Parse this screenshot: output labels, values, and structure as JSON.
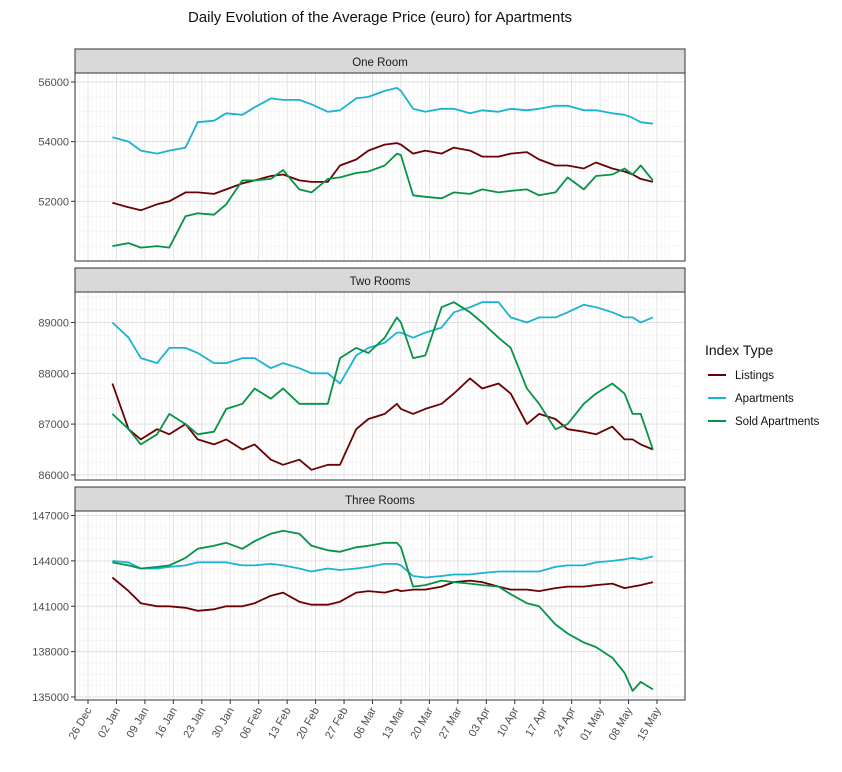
{
  "chart_data": {
    "type": "line",
    "title": "Daily Evolution of the Average Price (euro) for Apartments",
    "xlabel": "",
    "ylabel": "",
    "x_ticks": [
      "26 Dec",
      "02 Jan",
      "09 Jan",
      "16 Jan",
      "23 Jan",
      "30 Jan",
      "06 Feb",
      "13 Feb",
      "20 Feb",
      "27 Feb",
      "06 Mar",
      "13 Mar",
      "20 Mar",
      "27 Mar",
      "03 Apr",
      "10 Apr",
      "17 Apr",
      "24 Apr",
      "01 May",
      "08 May",
      "15 May"
    ],
    "x": [
      "01 Jan",
      "05 Jan",
      "08 Jan",
      "12 Jan",
      "15 Jan",
      "19 Jan",
      "22 Jan",
      "26 Jan",
      "29 Jan",
      "02 Feb",
      "05 Feb",
      "09 Feb",
      "12 Feb",
      "16 Feb",
      "19 Feb",
      "23 Feb",
      "26 Feb",
      "02 Mar",
      "05 Mar",
      "09 Mar",
      "12 Mar",
      "13 Mar",
      "16 Mar",
      "19 Mar",
      "23 Mar",
      "26 Mar",
      "30 Mar",
      "02 Apr",
      "06 Apr",
      "09 Apr",
      "13 Apr",
      "16 Apr",
      "20 Apr",
      "23 Apr",
      "27 Apr",
      "30 Apr",
      "04 May",
      "07 May",
      "09 May",
      "11 May",
      "14 May"
    ],
    "legend": {
      "title": "Index Type",
      "position": "right",
      "entries": [
        {
          "label": "Listings",
          "color": "#6b0000"
        },
        {
          "label": "Apartments",
          "color": "#1ab3d1"
        },
        {
          "label": "Sold Apartments",
          "color": "#079347"
        }
      ]
    },
    "grid": true,
    "panels": [
      {
        "label": "One Room",
        "ylim": [
          50000,
          56300
        ],
        "y_ticks": [
          52000,
          54000,
          56000
        ],
        "series": [
          {
            "name": "Listings",
            "values": [
              51950,
              51800,
              51700,
              51900,
              52000,
              52300,
              52300,
              52250,
              52400,
              52600,
              52700,
              52850,
              52900,
              52700,
              52650,
              52650,
              53200,
              53400,
              53700,
              53900,
              53950,
              53900,
              53600,
              53700,
              53600,
              53800,
              53700,
              53500,
              53500,
              53600,
              53650,
              53400,
              53200,
              53200,
              53100,
              53300,
              53100,
              53000,
              52900,
              52750,
              52650
            ]
          },
          {
            "name": "Apartments",
            "values": [
              54150,
              54000,
              53700,
              53600,
              53700,
              53800,
              54650,
              54700,
              54950,
              54900,
              55150,
              55450,
              55400,
              55400,
              55250,
              55000,
              55050,
              55450,
              55500,
              55700,
              55800,
              55700,
              55100,
              55000,
              55100,
              55100,
              54950,
              55050,
              55000,
              55100,
              55050,
              55100,
              55200,
              55200,
              55050,
              55050,
              54950,
              54900,
              54800,
              54650,
              54600
            ]
          },
          {
            "name": "Sold Apartments",
            "values": [
              50500,
              50600,
              50450,
              50500,
              50450,
              51500,
              51600,
              51550,
              51900,
              52700,
              52700,
              52750,
              53050,
              52400,
              52300,
              52750,
              52800,
              52950,
              53000,
              53200,
              53600,
              53550,
              52200,
              52150,
              52100,
              52300,
              52250,
              52400,
              52300,
              52350,
              52400,
              52200,
              52300,
              52800,
              52400,
              52850,
              52900,
              53100,
              52900,
              53200,
              52700
            ]
          }
        ]
      },
      {
        "label": "Two Rooms",
        "ylim": [
          85900,
          89600
        ],
        "y_ticks": [
          86000,
          87000,
          88000,
          89000
        ],
        "series": [
          {
            "name": "Listings",
            "values": [
              87800,
              86900,
              86700,
              86900,
              86800,
              87000,
              86700,
              86600,
              86700,
              86500,
              86600,
              86300,
              86200,
              86300,
              86100,
              86200,
              86200,
              86900,
              87100,
              87200,
              87400,
              87300,
              87200,
              87300,
              87400,
              87600,
              87900,
              87700,
              87800,
              87600,
              87000,
              87200,
              87100,
              86900,
              86850,
              86800,
              86950,
              86700,
              86700,
              86600,
              86500
            ]
          },
          {
            "name": "Apartments",
            "values": [
              89000,
              88700,
              88300,
              88200,
              88500,
              88500,
              88400,
              88200,
              88200,
              88300,
              88300,
              88100,
              88200,
              88100,
              88000,
              88000,
              87800,
              88350,
              88500,
              88600,
              88800,
              88800,
              88700,
              88800,
              88900,
              89200,
              89300,
              89400,
              89400,
              89100,
              89000,
              89100,
              89100,
              89200,
              89350,
              89300,
              89200,
              89100,
              89100,
              89000,
              89100
            ]
          },
          {
            "name": "Sold Apartments",
            "values": [
              87200,
              86900,
              86600,
              86800,
              87200,
              87000,
              86800,
              86850,
              87300,
              87400,
              87700,
              87500,
              87700,
              87400,
              87400,
              87400,
              88300,
              88500,
              88400,
              88700,
              89100,
              89000,
              88300,
              88350,
              89300,
              89400,
              89200,
              89000,
              88700,
              88500,
              87700,
              87400,
              86900,
              87000,
              87400,
              87600,
              87800,
              87600,
              87200,
              87200,
              86500
            ]
          }
        ]
      },
      {
        "label": "Three Rooms",
        "ylim": [
          134800,
          147300
        ],
        "y_ticks": [
          135000,
          138000,
          141000,
          144000,
          147000
        ],
        "series": [
          {
            "name": "Listings",
            "values": [
              142900,
              142000,
              141200,
              141000,
              141000,
              140900,
              140700,
              140800,
              141000,
              141000,
              141200,
              141700,
              141900,
              141300,
              141100,
              141100,
              141300,
              141900,
              142000,
              141900,
              142100,
              142000,
              142100,
              142100,
              142300,
              142600,
              142700,
              142600,
              142300,
              142100,
              142100,
              142000,
              142200,
              142300,
              142300,
              142400,
              142500,
              142200,
              142300,
              142400,
              142600
            ]
          },
          {
            "name": "Apartments",
            "values": [
              144000,
              143900,
              143500,
              143500,
              143600,
              143700,
              143900,
              143900,
              143900,
              143700,
              143700,
              143800,
              143700,
              143500,
              143300,
              143500,
              143400,
              143500,
              143600,
              143800,
              143800,
              143700,
              143000,
              142900,
              143000,
              143100,
              143100,
              143200,
              143300,
              143300,
              143300,
              143300,
              143600,
              143700,
              143700,
              143900,
              144000,
              144100,
              144200,
              144100,
              144300
            ]
          },
          {
            "name": "Sold Apartments",
            "values": [
              143900,
              143700,
              143500,
              143600,
              143700,
              144200,
              144800,
              145000,
              145200,
              144800,
              145300,
              145800,
              146000,
              145800,
              145000,
              144700,
              144600,
              144900,
              145000,
              145200,
              145200,
              144900,
              142300,
              142400,
              142700,
              142600,
              142500,
              142400,
              142300,
              141800,
              141200,
              141000,
              139800,
              139200,
              138600,
              138300,
              137600,
              136600,
              135400,
              136000,
              135500
            ]
          }
        ]
      }
    ]
  }
}
